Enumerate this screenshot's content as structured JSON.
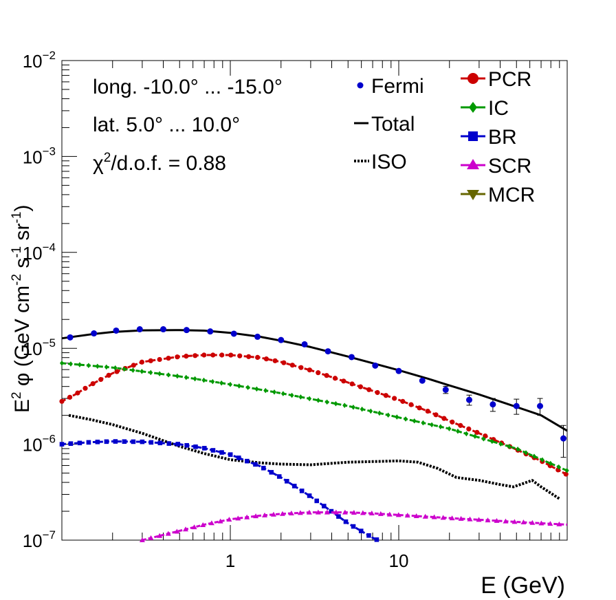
{
  "chart_data": {
    "type": "line",
    "x_scale": "log",
    "y_scale": "log",
    "xlim": [
      0.1,
      100
    ],
    "ylim": [
      1e-07,
      0.01
    ],
    "xlabel": "E (GeV)",
    "ylabel": {
      "a": "E",
      "a_sup": "2",
      "b": " φ (GeV cm",
      "b_sup": "-2",
      "c": " s",
      "c_sup": "-1",
      "d": " sr",
      "d_sup": "-1",
      "e": ")"
    },
    "x_ticks": [
      {
        "value": 1,
        "label": "1"
      },
      {
        "value": 10,
        "label": "10"
      }
    ],
    "y_ticks": [
      {
        "value": 1e-07,
        "base": "10",
        "exp": "−7"
      },
      {
        "value": 1e-06,
        "base": "10",
        "exp": "−6"
      },
      {
        "value": 1e-05,
        "base": "10",
        "exp": "−5"
      },
      {
        "value": 0.0001,
        "base": "10",
        "exp": "−4"
      },
      {
        "value": 0.001,
        "base": "10",
        "exp": "−3"
      },
      {
        "value": 0.01,
        "base": "10",
        "exp": "−2"
      }
    ],
    "annotations": {
      "longitude": "long. -10.0° ... -15.0°",
      "latitude": "lat. 5.0° ... 10.0°",
      "chi_prefix": "χ",
      "chi_sup": "2",
      "chi_suffix": "/d.o.f. = 0.88"
    },
    "legend_left": [
      {
        "name": "Fermi",
        "style": "point"
      },
      {
        "name": "Total",
        "style": "solid"
      },
      {
        "name": "ISO",
        "style": "dotted"
      }
    ],
    "legend_right": [
      {
        "name": "PCR",
        "color": "#cc0000",
        "marker": "circle"
      },
      {
        "name": "IC",
        "color": "#009900",
        "marker": "diamond"
      },
      {
        "name": "BR",
        "color": "#0000cc",
        "marker": "square"
      },
      {
        "name": "SCR",
        "color": "#cc00cc",
        "marker": "triangle-up"
      },
      {
        "name": "MCR",
        "color": "#666600",
        "marker": "triangle-down"
      }
    ],
    "fermi": {
      "color": "#0000cc",
      "x": [
        0.112,
        0.155,
        0.21,
        0.29,
        0.4,
        0.55,
        0.76,
        1.05,
        1.45,
        2.0,
        2.76,
        3.8,
        5.25,
        7.25,
        10.0,
        13.8,
        19.0,
        26.2,
        36.2,
        50.0,
        69.0,
        95.0
      ],
      "y": [
        1.3e-05,
        1.43e-05,
        1.53e-05,
        1.58e-05,
        1.58e-05,
        1.55e-05,
        1.5e-05,
        1.42e-05,
        1.32e-05,
        1.22e-05,
        1.1e-05,
        9.3e-06,
        8.1e-06,
        6.6e-06,
        5.8e-06,
        4.6e-06,
        3.7e-06,
        2.9e-06,
        2.6e-06,
        2.5e-06,
        2.5e-06,
        1.15e-06
      ],
      "err_lo": [
        0,
        0,
        0,
        0,
        0,
        0,
        0,
        0,
        0,
        0,
        0,
        0,
        0,
        0,
        0,
        0,
        3.2e-07,
        3.5e-07,
        4e-07,
        4.5e-07,
        5e-07,
        4.2e-07
      ],
      "err_hi": [
        0,
        0,
        0,
        0,
        0,
        0,
        0,
        0,
        0,
        0,
        0,
        0,
        0,
        0,
        0,
        0,
        3.2e-07,
        3.5e-07,
        4e-07,
        4.5e-07,
        5e-07,
        4.2e-07
      ]
    },
    "series": [
      {
        "name": "Total",
        "color": "#000000",
        "style": "solid",
        "width": 3,
        "x": [
          0.1,
          0.15,
          0.2,
          0.3,
          0.5,
          0.7,
          1.0,
          1.5,
          2.0,
          3.0,
          5.0,
          7.0,
          10.0,
          15.0,
          20.0,
          30.0,
          50.0,
          70.0,
          100.0
        ],
        "y": [
          1.27e-05,
          1.4e-05,
          1.48e-05,
          1.54e-05,
          1.55e-05,
          1.53e-05,
          1.45e-05,
          1.32e-05,
          1.2e-05,
          1.03e-05,
          8.2e-06,
          7e-06,
          5.9e-06,
          4.8e-06,
          4.1e-06,
          3.3e-06,
          2.45e-06,
          2e-06,
          1.38e-06
        ]
      },
      {
        "name": "ISO",
        "color": "#000000",
        "style": "dotted",
        "width": 4,
        "x": [
          0.11,
          0.15,
          0.2,
          0.3,
          0.5,
          0.7,
          1.0,
          1.5,
          2.0,
          3.0,
          5.0,
          7.0,
          10.0,
          13.0,
          17.0,
          22.0,
          30.0,
          40.0,
          48.0,
          55.0,
          62.0,
          70.0,
          82.0,
          90.0
        ],
        "y": [
          2e-06,
          1.8e-06,
          1.6e-06,
          1.3e-06,
          9.5e-07,
          8e-07,
          6.9e-07,
          6.4e-07,
          6.2e-07,
          6.1e-07,
          6.5e-07,
          6.6e-07,
          6.7e-07,
          6.5e-07,
          5.6e-07,
          4.5e-07,
          4.2e-07,
          3.8e-07,
          3.6e-07,
          3.9e-07,
          4.2e-07,
          3.6e-07,
          3e-07,
          2.7e-07
        ]
      },
      {
        "name": "PCR",
        "color": "#cc0000",
        "style": "dashed-markers",
        "width": 3,
        "x": [
          0.1,
          0.12,
          0.15,
          0.2,
          0.3,
          0.5,
          0.7,
          1.0,
          1.5,
          2.0,
          3.0,
          5.0,
          7.0,
          10.0,
          15.0,
          20.0,
          30.0,
          50.0,
          70.0,
          100.0
        ],
        "y": [
          2.8e-06,
          3.3e-06,
          4.2e-06,
          5.5e-06,
          7.2e-06,
          8.2e-06,
          8.5e-06,
          8.5e-06,
          8e-06,
          7.2e-06,
          5.9e-06,
          4.4e-06,
          3.6e-06,
          2.9e-06,
          2.2e-06,
          1.75e-06,
          1.3e-06,
          8.8e-07,
          6.7e-07,
          4.8e-07
        ]
      },
      {
        "name": "IC",
        "color": "#009900",
        "style": "dashed-markers",
        "width": 3,
        "x": [
          0.1,
          0.2,
          0.5,
          1.0,
          2.0,
          5.0,
          10.0,
          20.0,
          50.0,
          100.0
        ],
        "y": [
          7e-06,
          6.3e-06,
          5.1e-06,
          4.2e-06,
          3.4e-06,
          2.5e-06,
          1.9e-06,
          1.45e-06,
          9e-07,
          5.3e-07
        ]
      },
      {
        "name": "BR",
        "color": "#0000cc",
        "style": "dashed-markers",
        "width": 3,
        "x": [
          0.1,
          0.15,
          0.2,
          0.3,
          0.5,
          0.7,
          1.0,
          1.5,
          2.0,
          3.0,
          5.0,
          7.0,
          7.5
        ],
        "y": [
          1e-06,
          1.05e-06,
          1.07e-06,
          1.06e-06,
          1e-06,
          9.1e-07,
          7.8e-07,
          5.9e-07,
          4.5e-07,
          2.85e-07,
          1.5e-07,
          1.06e-07,
          1e-07
        ]
      },
      {
        "name": "SCR",
        "color": "#cc00cc",
        "style": "dashed-markers",
        "width": 3,
        "x": [
          0.3,
          0.5,
          0.7,
          1.0,
          1.5,
          2.0,
          3.0,
          5.0,
          7.0,
          10.0,
          20.0,
          50.0,
          100.0
        ],
        "y": [
          1e-07,
          1.25e-07,
          1.45e-07,
          1.65e-07,
          1.8e-07,
          1.88e-07,
          1.95e-07,
          1.95e-07,
          1.9e-07,
          1.83e-07,
          1.7e-07,
          1.55e-07,
          1.45e-07
        ]
      }
    ]
  }
}
